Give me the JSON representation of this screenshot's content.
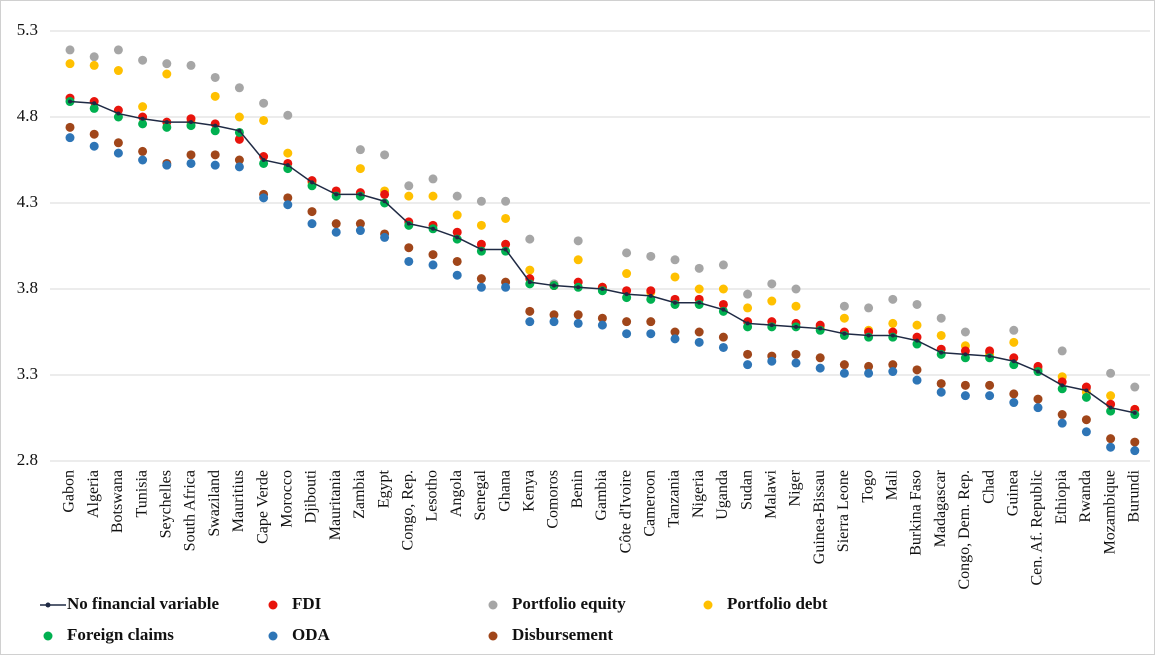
{
  "chart_data": {
    "type": "line",
    "categories": [
      "Gabon",
      "Algeria",
      "Botswana",
      "Tunisia",
      "Seychelles",
      "South Africa",
      "Swaziland",
      "Mauritius",
      "Cape Verde",
      "Morocco",
      "Djibouti",
      "Mauritania",
      "Zambia",
      "Egypt",
      "Congo, Rep.",
      "Lesotho",
      "Angola",
      "Senegal",
      "Ghana",
      "Kenya",
      "Comoros",
      "Benin",
      "Gambia",
      "Côte d'Ivoire",
      "Cameroon",
      "Tanzania",
      "Nigeria",
      "Uganda",
      "Sudan",
      "Malawi",
      "Niger",
      "Guinea-Bissau",
      "Sierra Leone",
      "Togo",
      "Mali",
      "Burkina Faso",
      "Madagascar",
      "Congo, Dem. Rep.",
      "Chad",
      "Guinea",
      "Cen. Af. Republic",
      "Ethiopia",
      "Rwanda",
      "Mozambique",
      "Burundi"
    ],
    "ylim": [
      2.8,
      5.3
    ],
    "yticks": [
      2.8,
      3.3,
      3.8,
      4.3,
      4.8,
      5.3
    ],
    "grid": true,
    "series": [
      {
        "name": "No financial variable",
        "color": "#1f2a44",
        "style": "line",
        "values": [
          4.89,
          4.88,
          4.82,
          4.79,
          4.77,
          4.77,
          4.75,
          4.72,
          4.55,
          4.52,
          4.42,
          4.35,
          4.35,
          4.31,
          4.18,
          4.15,
          4.1,
          4.03,
          4.03,
          3.84,
          3.82,
          3.81,
          3.8,
          3.77,
          3.76,
          3.72,
          3.72,
          3.68,
          3.6,
          3.59,
          3.58,
          3.57,
          3.54,
          3.53,
          3.53,
          3.5,
          3.43,
          3.42,
          3.41,
          3.38,
          3.32,
          3.24,
          3.21,
          3.11,
          3.08
        ]
      },
      {
        "name": "FDI",
        "color": "#e8140c",
        "style": "dots",
        "values": [
          4.91,
          4.89,
          4.84,
          4.8,
          4.77,
          4.79,
          4.76,
          4.67,
          4.57,
          4.53,
          4.43,
          4.37,
          4.36,
          4.35,
          4.19,
          4.17,
          4.13,
          4.06,
          4.06,
          3.86,
          3.82,
          3.84,
          3.81,
          3.79,
          3.79,
          3.74,
          3.74,
          3.71,
          3.61,
          3.61,
          3.6,
          3.59,
          3.55,
          3.55,
          3.55,
          3.52,
          3.45,
          3.44,
          3.44,
          3.4,
          3.35,
          3.26,
          3.23,
          3.13,
          3.1
        ]
      },
      {
        "name": "Portfolio equity",
        "color": "#a6a6a6",
        "style": "dots",
        "values": [
          5.19,
          5.15,
          5.19,
          5.13,
          5.11,
          5.1,
          5.03,
          4.97,
          4.88,
          4.81,
          4.43,
          4.36,
          4.61,
          4.58,
          4.4,
          4.44,
          4.34,
          4.31,
          4.31,
          4.09,
          3.83,
          4.08,
          3.81,
          4.01,
          3.99,
          3.97,
          3.92,
          3.94,
          3.77,
          3.83,
          3.8,
          3.58,
          3.7,
          3.69,
          3.74,
          3.71,
          3.63,
          3.55,
          3.43,
          3.56,
          3.34,
          3.44,
          3.22,
          3.31,
          3.23
        ]
      },
      {
        "name": "Portfolio debt",
        "color": "#ffc000",
        "style": "dots",
        "values": [
          5.11,
          5.1,
          5.07,
          4.86,
          5.05,
          4.77,
          4.92,
          4.8,
          4.78,
          4.59,
          4.42,
          4.35,
          4.5,
          4.37,
          4.34,
          4.34,
          4.23,
          4.17,
          4.21,
          3.91,
          3.82,
          3.97,
          3.81,
          3.89,
          3.78,
          3.87,
          3.8,
          3.8,
          3.69,
          3.73,
          3.7,
          3.57,
          3.63,
          3.56,
          3.6,
          3.59,
          3.53,
          3.47,
          3.42,
          3.49,
          3.33,
          3.29,
          3.2,
          3.18,
          3.1
        ]
      },
      {
        "name": "Foreign claims",
        "color": "#00b050",
        "style": "dots",
        "values": [
          4.89,
          4.85,
          4.8,
          4.76,
          4.74,
          4.75,
          4.72,
          4.71,
          4.53,
          4.5,
          4.4,
          4.34,
          4.34,
          4.3,
          4.17,
          4.15,
          4.09,
          4.02,
          4.02,
          3.83,
          3.82,
          3.81,
          3.79,
          3.75,
          3.74,
          3.71,
          3.71,
          3.67,
          3.58,
          3.58,
          3.58,
          3.56,
          3.53,
          3.52,
          3.52,
          3.48,
          3.42,
          3.4,
          3.4,
          3.36,
          3.32,
          3.22,
          3.17,
          3.09,
          3.07
        ]
      },
      {
        "name": "ODA",
        "color": "#2e75b6",
        "style": "dots",
        "values": [
          4.68,
          4.63,
          4.59,
          4.55,
          4.52,
          4.53,
          4.52,
          4.51,
          4.33,
          4.29,
          4.18,
          4.13,
          4.14,
          4.1,
          3.96,
          3.94,
          3.88,
          3.81,
          3.81,
          3.61,
          3.61,
          3.6,
          3.59,
          3.54,
          3.54,
          3.51,
          3.49,
          3.46,
          3.36,
          3.38,
          3.37,
          3.34,
          3.31,
          3.31,
          3.32,
          3.27,
          3.2,
          3.18,
          3.18,
          3.14,
          3.11,
          3.02,
          2.97,
          2.88,
          2.86
        ]
      },
      {
        "name": "Disbursement",
        "color": "#a0461a",
        "style": "dots",
        "values": [
          4.74,
          4.7,
          4.65,
          4.6,
          4.53,
          4.58,
          4.58,
          4.55,
          4.35,
          4.33,
          4.25,
          4.18,
          4.18,
          4.12,
          4.04,
          4.0,
          3.96,
          3.86,
          3.84,
          3.67,
          3.65,
          3.65,
          3.63,
          3.61,
          3.61,
          3.55,
          3.55,
          3.52,
          3.42,
          3.41,
          3.42,
          3.4,
          3.36,
          3.35,
          3.36,
          3.33,
          3.25,
          3.24,
          3.24,
          3.19,
          3.16,
          3.07,
          3.04,
          2.93,
          2.91
        ]
      }
    ]
  }
}
